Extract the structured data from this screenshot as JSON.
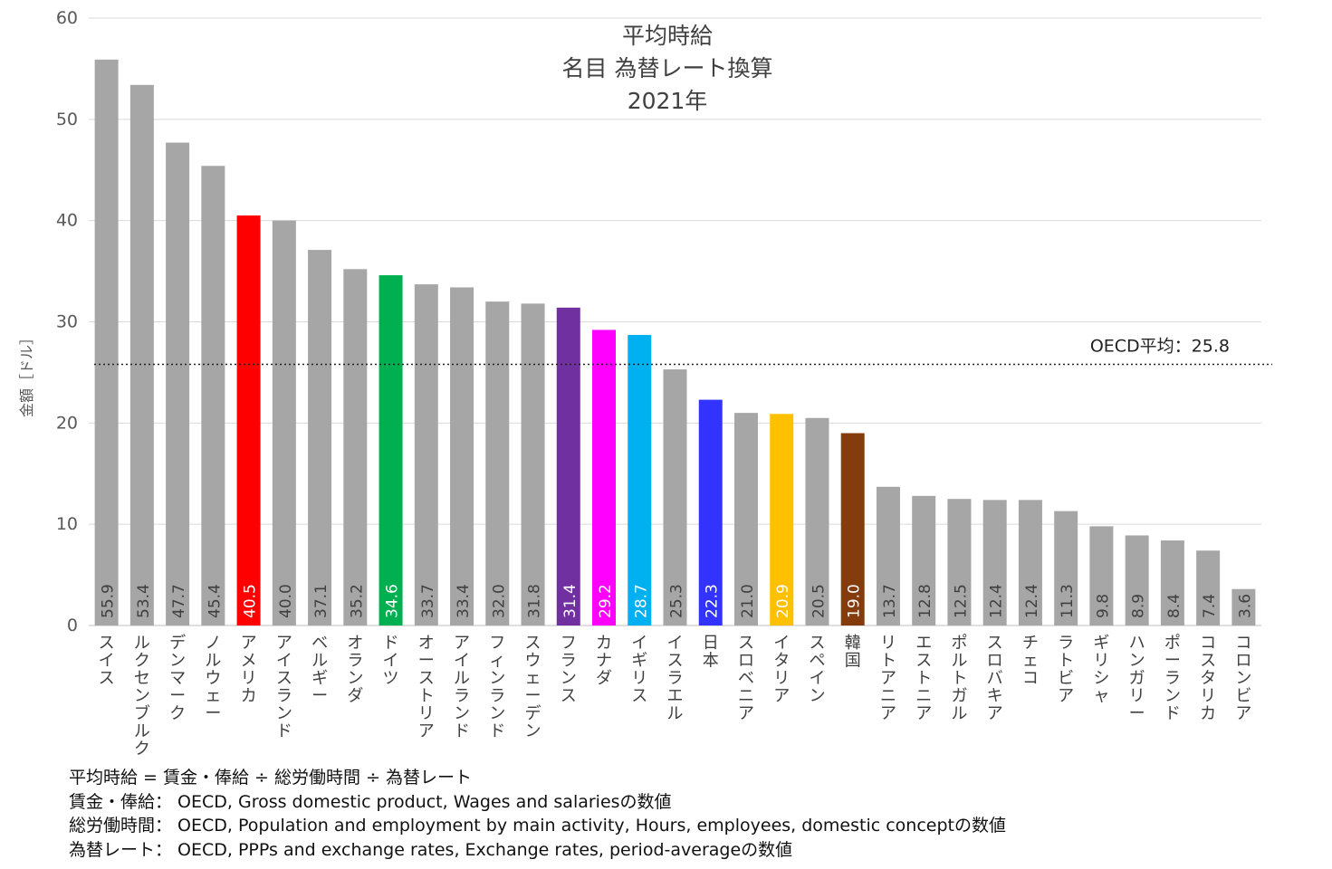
{
  "chart_data": {
    "type": "bar",
    "title": [
      "平均時給",
      "名目 為替レート換算",
      "2021年"
    ],
    "ylabel": "金額［ドル］",
    "xlabel": "",
    "ylim": [
      0,
      60
    ],
    "yticks": [
      0,
      10,
      20,
      30,
      40,
      50,
      60
    ],
    "grid": true,
    "categories": [
      "スイス",
      "ルクセンブルク",
      "デンマーク",
      "ノルウェー",
      "アメリカ",
      "アイスランド",
      "ベルギー",
      "オランダ",
      "ドイツ",
      "オーストリア",
      "アイルランド",
      "フィンランド",
      "スウェーデン",
      "フランス",
      "カナダ",
      "イギリス",
      "イスラエル",
      "日本",
      "スロベニア",
      "イタリア",
      "スペイン",
      "韓国",
      "リトアニア",
      "エストニア",
      "ポルトガル",
      "スロバキア",
      "チェコ",
      "ラトビア",
      "ギリシャ",
      "ハンガリー",
      "ポーランド",
      "コスタリカ",
      "コロンビア"
    ],
    "values": [
      55.9,
      53.4,
      47.7,
      45.4,
      40.5,
      40.0,
      37.1,
      35.2,
      34.6,
      33.7,
      33.4,
      32.0,
      31.8,
      31.4,
      29.2,
      28.7,
      25.3,
      22.3,
      21.0,
      20.9,
      20.5,
      19.0,
      13.7,
      12.8,
      12.5,
      12.4,
      12.4,
      11.3,
      9.8,
      8.9,
      8.4,
      7.4,
      3.6
    ],
    "value_labels": [
      "55.9",
      "53.4",
      "47.7",
      "45.4",
      "40.5",
      "40.0",
      "37.1",
      "35.2",
      "34.6",
      "33.7",
      "33.4",
      "32.0",
      "31.8",
      "31.4",
      "29.2",
      "28.7",
      "25.3",
      "22.3",
      "21.0",
      "20.9",
      "20.5",
      "19.0",
      "13.7",
      "12.8",
      "12.5",
      "12.4",
      "12.4",
      "11.3",
      "9.8",
      "8.9",
      "8.4",
      "7.4",
      "3.6"
    ],
    "colors": [
      "#a6a6a6",
      "#a6a6a6",
      "#a6a6a6",
      "#a6a6a6",
      "#ff0000",
      "#a6a6a6",
      "#a6a6a6",
      "#a6a6a6",
      "#00b050",
      "#a6a6a6",
      "#a6a6a6",
      "#a6a6a6",
      "#a6a6a6",
      "#7030a0",
      "#ff00ff",
      "#00b0f0",
      "#a6a6a6",
      "#3333ff",
      "#a6a6a6",
      "#ffc000",
      "#a6a6a6",
      "#843c0c",
      "#a6a6a6",
      "#a6a6a6",
      "#a6a6a6",
      "#a6a6a6",
      "#a6a6a6",
      "#a6a6a6",
      "#a6a6a6",
      "#a6a6a6",
      "#a6a6a6",
      "#a6a6a6",
      "#a6a6a6"
    ],
    "reference_line": {
      "value": 25.8,
      "label": "OECD平均：25.8"
    }
  },
  "notes": [
    "平均時給 = 賃金・俸給 ÷ 総労働時間 ÷ 為替レート",
    "賃金・俸給： OECD, Gross domestic product, Wages and salariesの数値",
    "総労働時間： OECD, Population and employment by main activity, Hours, employees, domestic conceptの数値",
    "為替レート： OECD, PPPs and exchange rates, Exchange rates, period-averageの数値"
  ]
}
